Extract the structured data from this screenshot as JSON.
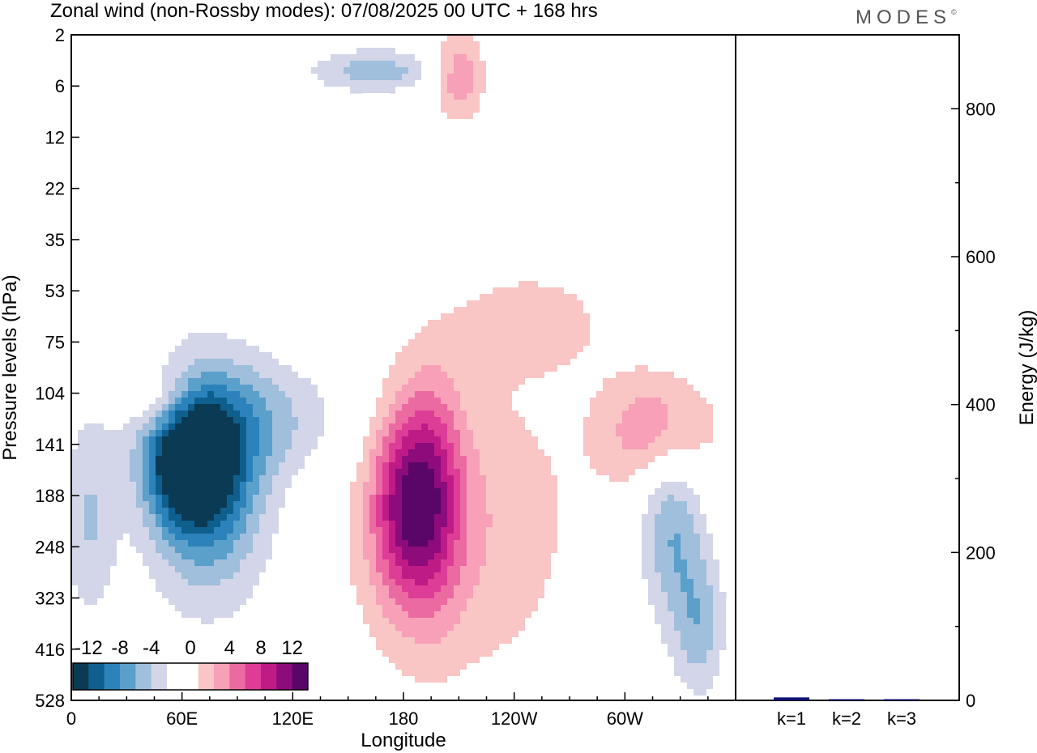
{
  "header": {
    "title": "Zonal wind (non-Rossby modes):  07/08/2025  00 UTC  + 168 hrs",
    "logo": "MODES"
  },
  "chart_data": [
    {
      "type": "heatmap",
      "title": "Zonal wind (non-Rossby modes)",
      "xlabel": "Longitude",
      "ylabel": "Pressure levels (hPa)",
      "x_ticks": [
        {
          "label": "0",
          "lon": 0
        },
        {
          "label": "60E",
          "lon": 60
        },
        {
          "label": "120E",
          "lon": 120
        },
        {
          "label": "180",
          "lon": 180
        },
        {
          "label": "120W",
          "lon": 240
        },
        {
          "label": "60W",
          "lon": 300
        }
      ],
      "xlim": [
        0,
        360
      ],
      "y_levels": [
        "2",
        "6",
        "12",
        "22",
        "35",
        "53",
        "75",
        "104",
        "141",
        "188",
        "248",
        "323",
        "416",
        "528"
      ],
      "colorbar": {
        "labels": [
          "-12",
          "-8",
          "-4",
          "0",
          "4",
          "8",
          "12"
        ],
        "colors": [
          "#0b3a55",
          "#0f5f8e",
          "#2c83bb",
          "#5b9fcb",
          "#9fbfdc",
          "#d3d5e8",
          "#ffffff",
          "#ffffff",
          "#f9c5c5",
          "#f7a0b8",
          "#ec6aa2",
          "#dd3d96",
          "#bf1b87",
          "#8d0b7b",
          "#5a0668"
        ]
      },
      "features": [
        {
          "lon": 65,
          "level_index": 8.3,
          "value": -14,
          "spread_lon": 16,
          "spread_lev": 0.9
        },
        {
          "lon": 75,
          "level_index": 8.8,
          "value": -8,
          "spread_lon": 24,
          "spread_lev": 1.6
        },
        {
          "lon": 100,
          "level_index": 7.5,
          "value": -4,
          "spread_lon": 40,
          "spread_lev": 0.8
        },
        {
          "lon": 10,
          "level_index": 9.5,
          "value": -4,
          "spread_lon": 10,
          "spread_lev": 1.4
        },
        {
          "lon": 178,
          "level_index": 9.2,
          "value": 8,
          "spread_lon": 12,
          "spread_lev": 1.3
        },
        {
          "lon": 195,
          "level_index": 9.0,
          "value": 9,
          "spread_lon": 12,
          "spread_lev": 1.5
        },
        {
          "lon": 210,
          "level_index": 9.6,
          "value": 4,
          "spread_lon": 45,
          "spread_lev": 2.2
        },
        {
          "lon": 318,
          "level_index": 7.7,
          "value": 6,
          "spread_lon": 22,
          "spread_lev": 0.8
        },
        {
          "lon": 325,
          "level_index": 9.6,
          "value": -6,
          "spread_lon": 12,
          "spread_lev": 1.3
        },
        {
          "lon": 340,
          "level_index": 11.5,
          "value": -5,
          "spread_lon": 10,
          "spread_lev": 1.0
        },
        {
          "lon": 210,
          "level_index": 0.8,
          "value": 6,
          "spread_lon": 10,
          "spread_lev": 0.6
        },
        {
          "lon": 165,
          "level_index": 0.7,
          "value": -5,
          "spread_lon": 25,
          "spread_lev": 0.3
        },
        {
          "lon": 52,
          "level_index": 7.2,
          "value": 5,
          "spread_lon": 14,
          "spread_lev": 0.5
        },
        {
          "lon": 250,
          "level_index": 5.6,
          "value": 3,
          "spread_lon": 30,
          "spread_lev": 0.7
        }
      ]
    },
    {
      "type": "bar",
      "ylabel": "Energy (J/kg)",
      "ylim": [
        0,
        900
      ],
      "y_ticks": [
        0,
        200,
        400,
        600,
        800
      ],
      "categories": [
        "k=1",
        "k=2",
        "k=3"
      ],
      "values": [
        4,
        1.5,
        1
      ],
      "bar_color": "#10107a"
    }
  ]
}
